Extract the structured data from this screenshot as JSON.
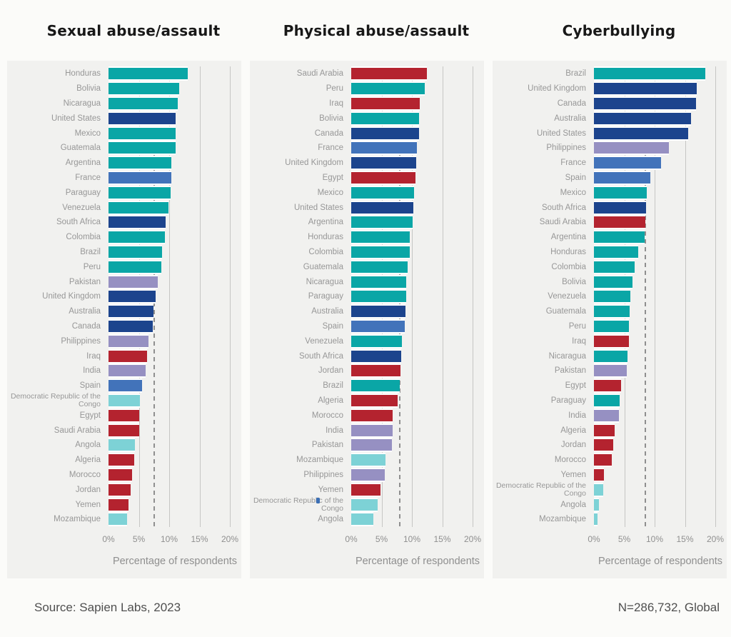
{
  "footer": {
    "source": "Source: Sapien Labs, 2023",
    "sample": "N=286,732, Global"
  },
  "palette": {
    "teal": "#0aa6a6",
    "navy": "#1c448d",
    "blue": "#4273ba",
    "purple": "#9690c2",
    "red": "#b4232f",
    "cyan": "#7dd2d6"
  },
  "axis_style": {
    "grid_color": "#c6c6c4",
    "mean_line_color": "#8f8f8f",
    "label_color": "#979797"
  },
  "chart_data": [
    {
      "type": "bar",
      "title": "Sexual abuse/assault",
      "xlabel": "Percentage of respondents",
      "xlim": [
        0,
        20
      ],
      "x_ticks": [
        "0%",
        "5%",
        "10%",
        "15%",
        "20%"
      ],
      "grid": true,
      "mean_line": 7.4,
      "items": [
        {
          "country": "Honduras",
          "value": 13.0,
          "color": "teal"
        },
        {
          "country": "Bolivia",
          "value": 11.6,
          "color": "teal"
        },
        {
          "country": "Nicaragua",
          "value": 11.4,
          "color": "teal"
        },
        {
          "country": "United States",
          "value": 11.1,
          "color": "navy"
        },
        {
          "country": "Mexico",
          "value": 11.1,
          "color": "teal"
        },
        {
          "country": "Guatemala",
          "value": 11.0,
          "color": "teal"
        },
        {
          "country": "Argentina",
          "value": 10.4,
          "color": "teal"
        },
        {
          "country": "France",
          "value": 10.3,
          "color": "blue"
        },
        {
          "country": "Paraguay",
          "value": 10.2,
          "color": "teal"
        },
        {
          "country": "Venezuela",
          "value": 9.9,
          "color": "teal"
        },
        {
          "country": "South Africa",
          "value": 9.4,
          "color": "navy"
        },
        {
          "country": "Colombia",
          "value": 9.3,
          "color": "teal"
        },
        {
          "country": "Brazil",
          "value": 8.8,
          "color": "teal"
        },
        {
          "country": "Peru",
          "value": 8.7,
          "color": "teal"
        },
        {
          "country": "Pakistan",
          "value": 8.1,
          "color": "purple"
        },
        {
          "country": "United Kingdom",
          "value": 7.8,
          "color": "navy"
        },
        {
          "country": "Australia",
          "value": 7.4,
          "color": "navy"
        },
        {
          "country": "Canada",
          "value": 7.3,
          "color": "navy"
        },
        {
          "country": "Philippines",
          "value": 6.6,
          "color": "purple"
        },
        {
          "country": "Iraq",
          "value": 6.3,
          "color": "red"
        },
        {
          "country": "India",
          "value": 6.1,
          "color": "purple"
        },
        {
          "country": "Spain",
          "value": 5.5,
          "color": "blue"
        },
        {
          "country": "Democratic Republic of the Congo",
          "value": 5.2,
          "color": "cyan"
        },
        {
          "country": "Egypt",
          "value": 5.1,
          "color": "red"
        },
        {
          "country": "Saudi Arabia",
          "value": 5.1,
          "color": "red"
        },
        {
          "country": "Angola",
          "value": 4.3,
          "color": "cyan"
        },
        {
          "country": "Algeria",
          "value": 4.2,
          "color": "red"
        },
        {
          "country": "Morocco",
          "value": 3.9,
          "color": "red"
        },
        {
          "country": "Jordan",
          "value": 3.6,
          "color": "red"
        },
        {
          "country": "Yemen",
          "value": 3.3,
          "color": "red"
        },
        {
          "country": "Mozambique",
          "value": 3.0,
          "color": "cyan"
        }
      ]
    },
    {
      "type": "bar",
      "title": "Physical abuse/assault",
      "xlabel": "Percentage of respondents",
      "xlim": [
        0,
        20
      ],
      "x_ticks": [
        "0%",
        "5%",
        "10%",
        "15%",
        "20%"
      ],
      "grid": true,
      "mean_line": 7.9,
      "items": [
        {
          "country": "Saudi Arabia",
          "value": 12.5,
          "color": "red"
        },
        {
          "country": "Peru",
          "value": 12.1,
          "color": "teal"
        },
        {
          "country": "Iraq",
          "value": 11.3,
          "color": "red"
        },
        {
          "country": "Bolivia",
          "value": 11.2,
          "color": "teal"
        },
        {
          "country": "Canada",
          "value": 11.2,
          "color": "navy"
        },
        {
          "country": "France",
          "value": 10.8,
          "color": "blue"
        },
        {
          "country": "United Kingdom",
          "value": 10.7,
          "color": "navy"
        },
        {
          "country": "Egypt",
          "value": 10.6,
          "color": "red"
        },
        {
          "country": "Mexico",
          "value": 10.3,
          "color": "teal"
        },
        {
          "country": "United States",
          "value": 10.2,
          "color": "navy"
        },
        {
          "country": "Argentina",
          "value": 10.1,
          "color": "teal"
        },
        {
          "country": "Honduras",
          "value": 9.7,
          "color": "teal"
        },
        {
          "country": "Colombia",
          "value": 9.6,
          "color": "teal"
        },
        {
          "country": "Guatemala",
          "value": 9.3,
          "color": "teal"
        },
        {
          "country": "Nicaragua",
          "value": 9.1,
          "color": "teal"
        },
        {
          "country": "Paraguay",
          "value": 9.0,
          "color": "teal"
        },
        {
          "country": "Australia",
          "value": 8.9,
          "color": "navy"
        },
        {
          "country": "Spain",
          "value": 8.8,
          "color": "blue"
        },
        {
          "country": "Venezuela",
          "value": 8.4,
          "color": "teal"
        },
        {
          "country": "South Africa",
          "value": 8.2,
          "color": "navy"
        },
        {
          "country": "Jordan",
          "value": 8.1,
          "color": "red"
        },
        {
          "country": "Brazil",
          "value": 8.0,
          "color": "teal"
        },
        {
          "country": "Algeria",
          "value": 7.7,
          "color": "red"
        },
        {
          "country": "Morocco",
          "value": 6.8,
          "color": "red"
        },
        {
          "country": "India",
          "value": 6.8,
          "color": "purple"
        },
        {
          "country": "Pakistan",
          "value": 6.7,
          "color": "purple"
        },
        {
          "country": "Mozambique",
          "value": 5.7,
          "color": "cyan"
        },
        {
          "country": "Philippines",
          "value": 5.5,
          "color": "purple"
        },
        {
          "country": "Yemen",
          "value": 4.8,
          "color": "red"
        },
        {
          "country": "Democratic Republic of the Congo",
          "value": 4.3,
          "color": "cyan"
        },
        {
          "country": "Angola",
          "value": 3.7,
          "color": "cyan"
        }
      ]
    },
    {
      "type": "bar",
      "title": "Cyberbullying",
      "xlabel": "Percentage of respondents",
      "xlim": [
        0,
        20
      ],
      "x_ticks": [
        "0%",
        "5%",
        "10%",
        "15%",
        "20%"
      ],
      "grid": true,
      "mean_line": 8.4,
      "items": [
        {
          "country": "Brazil",
          "value": 18.4,
          "color": "teal"
        },
        {
          "country": "United Kingdom",
          "value": 16.9,
          "color": "navy"
        },
        {
          "country": "Canada",
          "value": 16.8,
          "color": "navy"
        },
        {
          "country": "Australia",
          "value": 16.0,
          "color": "navy"
        },
        {
          "country": "United States",
          "value": 15.5,
          "color": "navy"
        },
        {
          "country": "Philippines",
          "value": 12.3,
          "color": "purple"
        },
        {
          "country": "France",
          "value": 11.0,
          "color": "blue"
        },
        {
          "country": "Spain",
          "value": 9.3,
          "color": "blue"
        },
        {
          "country": "Mexico",
          "value": 8.7,
          "color": "teal"
        },
        {
          "country": "South Africa",
          "value": 8.6,
          "color": "navy"
        },
        {
          "country": "Saudi Arabia",
          "value": 8.5,
          "color": "red"
        },
        {
          "country": "Argentina",
          "value": 8.4,
          "color": "teal"
        },
        {
          "country": "Honduras",
          "value": 7.3,
          "color": "teal"
        },
        {
          "country": "Colombia",
          "value": 6.7,
          "color": "teal"
        },
        {
          "country": "Bolivia",
          "value": 6.4,
          "color": "teal"
        },
        {
          "country": "Venezuela",
          "value": 6.0,
          "color": "teal"
        },
        {
          "country": "Guatemala",
          "value": 5.9,
          "color": "teal"
        },
        {
          "country": "Peru",
          "value": 5.8,
          "color": "teal"
        },
        {
          "country": "Iraq",
          "value": 5.8,
          "color": "red"
        },
        {
          "country": "Nicaragua",
          "value": 5.5,
          "color": "teal"
        },
        {
          "country": "Pakistan",
          "value": 5.4,
          "color": "purple"
        },
        {
          "country": "Egypt",
          "value": 4.5,
          "color": "red"
        },
        {
          "country": "Paraguay",
          "value": 4.2,
          "color": "teal"
        },
        {
          "country": "India",
          "value": 4.1,
          "color": "purple"
        },
        {
          "country": "Algeria",
          "value": 3.4,
          "color": "red"
        },
        {
          "country": "Jordan",
          "value": 3.2,
          "color": "red"
        },
        {
          "country": "Morocco",
          "value": 2.9,
          "color": "red"
        },
        {
          "country": "Yemen",
          "value": 1.7,
          "color": "red"
        },
        {
          "country": "Democratic Republic of the Congo",
          "value": 1.5,
          "color": "cyan"
        },
        {
          "country": "Angola",
          "value": 0.8,
          "color": "cyan"
        },
        {
          "country": "Mozambique",
          "value": 0.6,
          "color": "cyan"
        }
      ]
    }
  ]
}
